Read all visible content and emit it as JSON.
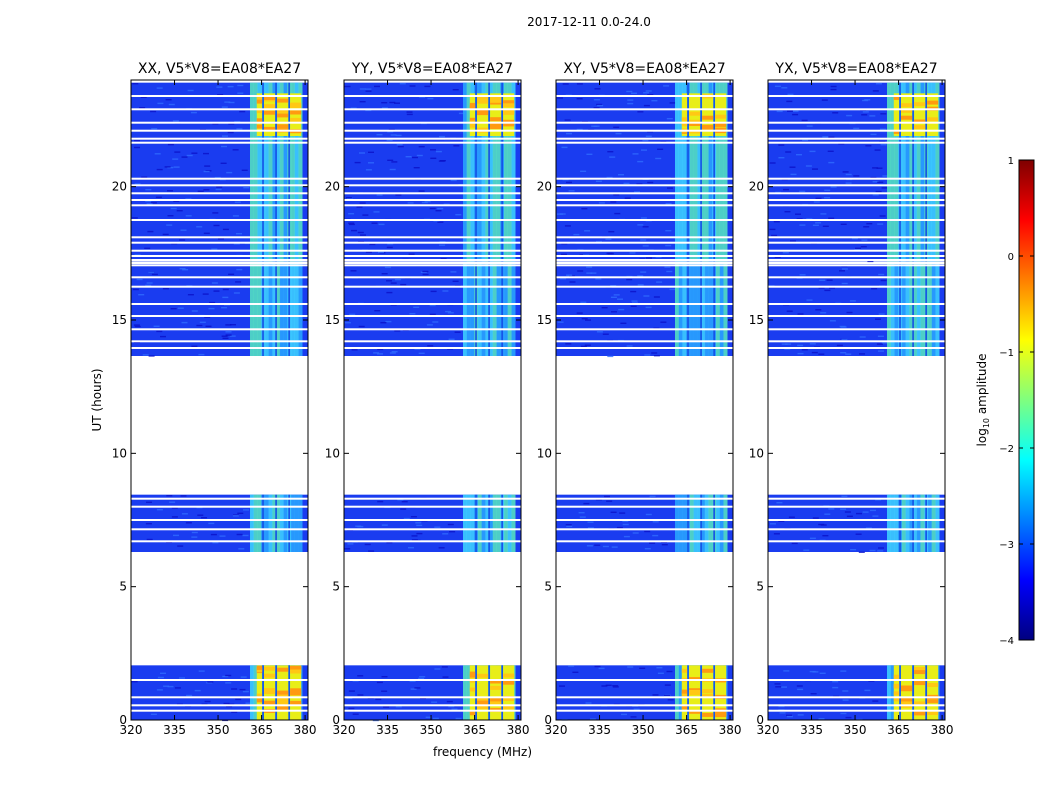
{
  "figure": {
    "suptitle": "2017-12-11 0.0-24.0"
  },
  "chart_data": {
    "type": "heatmap",
    "xlabel": "frequency (MHz)",
    "ylabel": "UT (hours)",
    "xlim": [
      320,
      381
    ],
    "ylim": [
      0,
      24
    ],
    "xticks": [
      320,
      335,
      350,
      365,
      380
    ],
    "yticks": [
      0,
      5,
      10,
      15,
      20
    ],
    "panels": [
      {
        "title": "XX, V5*V8=EA08*EA27",
        "hot_low": 1.0,
        "hot_high": 0.75
      },
      {
        "title": "YY, V5*V8=EA08*EA27",
        "hot_low": 0.9,
        "hot_high": 0.95
      },
      {
        "title": "XY, V5*V8=EA08*EA27",
        "hot_low": 0.85,
        "hot_high": 0.7
      },
      {
        "title": "YX, V5*V8=EA08*EA27",
        "hot_low": 0.9,
        "hot_high": 0.55
      }
    ],
    "data_segments_ut": [
      [
        0.0,
        2.05
      ],
      [
        6.3,
        8.45
      ],
      [
        13.65,
        17.1
      ],
      [
        17.2,
        23.9
      ]
    ],
    "flagged_rows_ut": [
      0.35,
      0.55,
      0.85,
      1.5,
      6.7,
      7.15,
      7.5,
      8.0,
      8.3,
      13.95,
      14.2,
      14.65,
      15.15,
      15.6,
      16.25,
      16.6,
      17.05,
      17.25,
      17.4,
      17.6,
      17.9,
      18.1,
      18.75,
      19.3,
      19.5,
      19.75,
      20.05,
      20.3,
      21.65,
      21.8,
      22.1,
      22.4,
      22.9,
      23.4
    ],
    "emission_band_mhz": [
      361,
      379
    ],
    "emission_channel_edges_mhz": [
      365.5,
      370.0,
      374.5
    ],
    "bright_intervals_ut": [
      [
        0.0,
        2.05
      ],
      [
        21.9,
        23.5
      ]
    ],
    "colorbar": {
      "label_prefix": "log",
      "label_sub": "10",
      "label_suffix": " amplitude",
      "range": [
        -4,
        1
      ],
      "ticks": [
        -4,
        -3,
        -2,
        -1,
        0,
        1
      ],
      "tick_labels": [
        "−4",
        "−3",
        "−2",
        "−1",
        "0",
        "1"
      ],
      "colormap": "jet",
      "stops": [
        "#00007f",
        "#0000ff",
        "#007fff",
        "#00ffff",
        "#7fff7f",
        "#ffff00",
        "#ff7f00",
        "#ff0000",
        "#7f0000"
      ]
    }
  }
}
